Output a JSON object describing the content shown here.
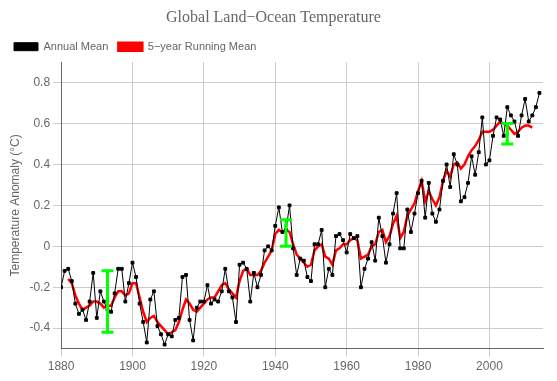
{
  "chart_data": {
    "type": "line",
    "title": "Global Land−Ocean Temperature",
    "ylabel": "Temperature Anomaly (°C)",
    "xlim": [
      1880,
      2015
    ],
    "ylim": [
      -0.5,
      0.9
    ],
    "xticks": [
      1880,
      1900,
      1920,
      1940,
      1960,
      1980,
      2000
    ],
    "yticks": [
      -0.4,
      -0.2,
      0,
      0.2,
      0.4,
      0.6,
      0.8
    ],
    "grid": true,
    "legend": "upper left",
    "series": [
      {
        "name": "Annual Mean",
        "color": "#000000",
        "marker": "square",
        "line_style": "solid",
        "x": [
          1880,
          1881,
          1882,
          1883,
          1884,
          1885,
          1886,
          1887,
          1888,
          1889,
          1890,
          1891,
          1892,
          1893,
          1894,
          1895,
          1896,
          1897,
          1898,
          1899,
          1900,
          1901,
          1902,
          1903,
          1904,
          1905,
          1906,
          1907,
          1908,
          1909,
          1910,
          1911,
          1912,
          1913,
          1914,
          1915,
          1916,
          1917,
          1918,
          1919,
          1920,
          1921,
          1922,
          1923,
          1924,
          1925,
          1926,
          1927,
          1928,
          1929,
          1930,
          1931,
          1932,
          1933,
          1934,
          1935,
          1936,
          1937,
          1938,
          1939,
          1940,
          1941,
          1942,
          1943,
          1944,
          1945,
          1946,
          1947,
          1948,
          1949,
          1950,
          1951,
          1952,
          1953,
          1954,
          1955,
          1956,
          1957,
          1958,
          1959,
          1960,
          1961,
          1962,
          1963,
          1964,
          1965,
          1966,
          1967,
          1968,
          1969,
          1970,
          1971,
          1972,
          1973,
          1974,
          1975,
          1976,
          1977,
          1978,
          1979,
          1980,
          1981,
          1982,
          1983,
          1984,
          1985,
          1986,
          1987,
          1988,
          1989,
          1990,
          1991,
          1992,
          1993,
          1994,
          1995,
          1996,
          1997,
          1998,
          1999,
          2000,
          2001,
          2002,
          2003,
          2004,
          2005,
          2006,
          2007,
          2008,
          2009,
          2010,
          2011,
          2012,
          2013,
          2014
        ],
        "values": [
          -0.2,
          -0.12,
          -0.11,
          -0.17,
          -0.28,
          -0.33,
          -0.31,
          -0.36,
          -0.27,
          -0.13,
          -0.35,
          -0.22,
          -0.27,
          -0.31,
          -0.32,
          -0.23,
          -0.11,
          -0.11,
          -0.27,
          -0.18,
          -0.08,
          -0.15,
          -0.28,
          -0.37,
          -0.47,
          -0.26,
          -0.22,
          -0.39,
          -0.43,
          -0.48,
          -0.43,
          -0.44,
          -0.36,
          -0.35,
          -0.15,
          -0.14,
          -0.36,
          -0.46,
          -0.3,
          -0.27,
          -0.27,
          -0.19,
          -0.28,
          -0.26,
          -0.27,
          -0.22,
          -0.11,
          -0.22,
          -0.25,
          -0.37,
          -0.09,
          -0.08,
          -0.11,
          -0.27,
          -0.13,
          -0.2,
          -0.14,
          -0.02,
          0.0,
          -0.02,
          0.1,
          0.19,
          0.07,
          0.08,
          0.2,
          -0.01,
          -0.14,
          -0.06,
          -0.07,
          -0.15,
          -0.17,
          0.01,
          0.01,
          0.08,
          -0.2,
          -0.11,
          -0.14,
          0.05,
          0.06,
          0.03,
          -0.03,
          0.06,
          0.04,
          0.05,
          -0.2,
          -0.11,
          -0.06,
          0.02,
          -0.07,
          0.14,
          0.05,
          -0.08,
          0.01,
          0.16,
          0.26,
          -0.01,
          -0.01,
          0.18,
          0.07,
          0.16,
          0.26,
          0.32,
          0.14,
          0.31,
          0.16,
          0.12,
          0.18,
          0.32,
          0.4,
          0.29,
          0.45,
          0.4,
          0.22,
          0.24,
          0.31,
          0.44,
          0.35,
          0.46,
          0.63,
          0.4,
          0.42,
          0.54,
          0.63,
          0.62,
          0.54,
          0.68,
          0.64,
          0.61,
          0.54,
          0.64,
          0.72,
          0.61,
          0.64,
          0.68,
          0.75
        ]
      },
      {
        "name": "5−year Running Mean",
        "color": "#ff0000",
        "line_style": "solid",
        "x": [
          1882,
          1883,
          1884,
          1885,
          1886,
          1887,
          1888,
          1889,
          1890,
          1891,
          1892,
          1893,
          1894,
          1895,
          1896,
          1897,
          1898,
          1899,
          1900,
          1901,
          1902,
          1903,
          1904,
          1905,
          1906,
          1907,
          1908,
          1909,
          1910,
          1911,
          1912,
          1913,
          1914,
          1915,
          1916,
          1917,
          1918,
          1919,
          1920,
          1921,
          1922,
          1923,
          1924,
          1925,
          1926,
          1927,
          1928,
          1929,
          1930,
          1931,
          1932,
          1933,
          1934,
          1935,
          1936,
          1937,
          1938,
          1939,
          1940,
          1941,
          1942,
          1943,
          1944,
          1945,
          1946,
          1947,
          1948,
          1949,
          1950,
          1951,
          1952,
          1953,
          1954,
          1955,
          1956,
          1957,
          1958,
          1959,
          1960,
          1961,
          1962,
          1963,
          1964,
          1965,
          1966,
          1967,
          1968,
          1969,
          1970,
          1971,
          1972,
          1973,
          1974,
          1975,
          1976,
          1977,
          1978,
          1979,
          1980,
          1981,
          1982,
          1983,
          1984,
          1985,
          1986,
          1987,
          1988,
          1989,
          1990,
          1991,
          1992,
          1993,
          1994,
          1995,
          1996,
          1997,
          1998,
          1999,
          2000,
          2001,
          2002,
          2003,
          2004,
          2005,
          2006,
          2007,
          2008,
          2009,
          2010,
          2011,
          2012
        ],
        "values": [
          -0.16,
          -0.18,
          -0.24,
          -0.28,
          -0.31,
          -0.3,
          -0.29,
          -0.27,
          -0.27,
          -0.28,
          -0.3,
          -0.29,
          -0.29,
          -0.25,
          -0.22,
          -0.22,
          -0.24,
          -0.23,
          -0.18,
          -0.18,
          -0.25,
          -0.32,
          -0.37,
          -0.35,
          -0.34,
          -0.37,
          -0.39,
          -0.41,
          -0.43,
          -0.42,
          -0.41,
          -0.37,
          -0.31,
          -0.26,
          -0.28,
          -0.31,
          -0.32,
          -0.3,
          -0.28,
          -0.26,
          -0.25,
          -0.25,
          -0.22,
          -0.19,
          -0.18,
          -0.21,
          -0.23,
          -0.25,
          -0.17,
          -0.12,
          -0.11,
          -0.14,
          -0.14,
          -0.14,
          -0.12,
          -0.08,
          -0.05,
          -0.02,
          0.06,
          0.08,
          0.07,
          0.08,
          0.07,
          0.01,
          -0.04,
          -0.06,
          -0.08,
          -0.1,
          -0.09,
          -0.02,
          0.0,
          0.01,
          -0.05,
          -0.06,
          -0.09,
          -0.02,
          -0.01,
          0.01,
          0.01,
          0.03,
          0.04,
          0.03,
          -0.06,
          -0.05,
          -0.04,
          0.0,
          0.01,
          0.07,
          0.08,
          0.02,
          0.05,
          0.11,
          0.15,
          0.04,
          0.07,
          0.15,
          0.18,
          0.21,
          0.27,
          0.32,
          0.22,
          0.27,
          0.23,
          0.2,
          0.24,
          0.32,
          0.37,
          0.34,
          0.4,
          0.41,
          0.38,
          0.4,
          0.44,
          0.47,
          0.49,
          0.52,
          0.56,
          0.56,
          0.56,
          0.57,
          0.59,
          0.61,
          0.6,
          0.59,
          0.57,
          0.55,
          0.56,
          0.58,
          0.59,
          0.59,
          0.58
        ]
      }
    ],
    "error_bars": {
      "color": "#00ff00",
      "x": [
        1893,
        1943,
        2005
      ],
      "values": [
        -0.27,
        0.1,
        0.55
      ],
      "low": [
        -0.42,
        0.0,
        0.5
      ],
      "high": [
        -0.12,
        0.13,
        0.6
      ]
    }
  }
}
